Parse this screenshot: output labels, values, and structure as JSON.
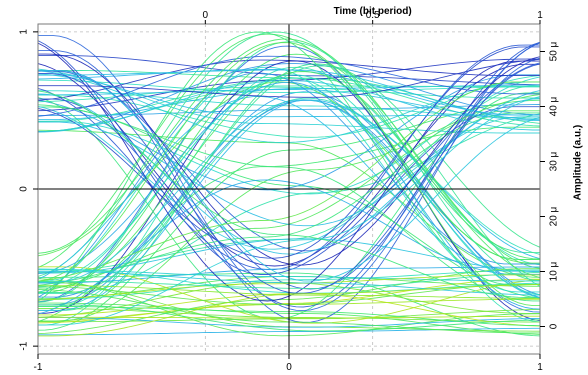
{
  "chart_data": {
    "type": "line",
    "title": "",
    "top_axis": {
      "label": "Time (bit period)",
      "ticks": [
        {
          "value": 0,
          "label": "0"
        },
        {
          "value": 0.5,
          "label": "0.5"
        },
        {
          "value": 1,
          "label": "1"
        }
      ],
      "range": [
        -0.5,
        1
      ]
    },
    "bottom_axis": {
      "label": "",
      "ticks": [
        {
          "value": -1,
          "label": "-1"
        },
        {
          "value": 0,
          "label": "0"
        },
        {
          "value": 1,
          "label": "1"
        }
      ],
      "range": [
        -1,
        1
      ]
    },
    "left_axis": {
      "label": "",
      "ticks": [
        {
          "value": 1,
          "label": "1"
        },
        {
          "value": 0,
          "label": "0"
        },
        {
          "value": -1,
          "label": "-1"
        }
      ],
      "range": [
        -1.05,
        1.05
      ]
    },
    "right_axis": {
      "label": "Amplitude (a.u.)",
      "ticks": [
        {
          "value": 0,
          "label": "0"
        },
        {
          "value": 10,
          "label": "10 μ"
        },
        {
          "value": 20,
          "label": "20 μ"
        },
        {
          "value": 30,
          "label": "30 μ"
        },
        {
          "value": 40,
          "label": "40 μ"
        },
        {
          "value": 50,
          "label": "50 μ"
        }
      ],
      "range": [
        -5,
        55
      ],
      "unit_scale": "micro"
    },
    "grid": "dashed, at major ticks",
    "center_cross": true,
    "colormap": [
      "#1a1ab0",
      "#2f6fe0",
      "#29b8e8",
      "#2ee0c8",
      "#3ee86a",
      "#8ee82a",
      "#f2e20a"
    ],
    "x_span_bits": [
      -1,
      1
    ],
    "levels": {
      "low_band": -0.72,
      "high_band": 0.55,
      "peak": 1.0,
      "floor": -0.95
    },
    "trace_count": 110
  }
}
